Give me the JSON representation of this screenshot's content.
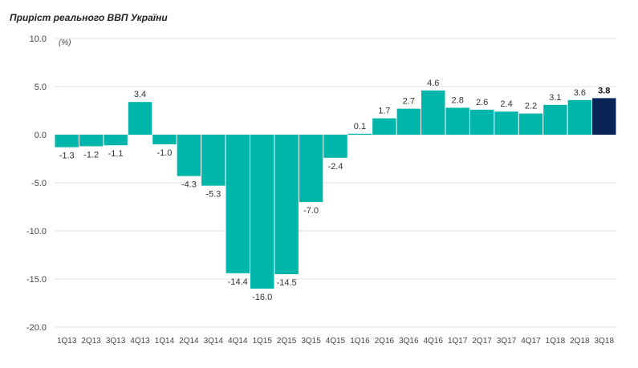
{
  "chart_data": {
    "type": "bar",
    "title": "Приріст реального ВВП України",
    "ylabel": "(%)",
    "xlabel": "",
    "ylim": [
      -20,
      10
    ],
    "yticks": [
      "10.0",
      "5.0",
      "0.0",
      "-5.0",
      "-10.0",
      "-15.0",
      "-20.0"
    ],
    "ytick_values": [
      10,
      5,
      0,
      -5,
      -10,
      -15,
      -20
    ],
    "grid": true,
    "categories": [
      "1Q13",
      "2Q13",
      "3Q13",
      "4Q13",
      "1Q14",
      "2Q14",
      "3Q14",
      "4Q14",
      "1Q15",
      "2Q15",
      "3Q15",
      "4Q15",
      "1Q16",
      "2Q16",
      "3Q16",
      "4Q16",
      "1Q17",
      "2Q17",
      "3Q17",
      "4Q17",
      "1Q18",
      "2Q18",
      "3Q18"
    ],
    "values": [
      -1.3,
      -1.2,
      -1.1,
      3.4,
      -1.0,
      -4.3,
      -5.3,
      -14.4,
      -16.0,
      -14.5,
      -7.0,
      -2.4,
      0.1,
      1.7,
      2.7,
      4.6,
      2.8,
      2.6,
      2.4,
      2.2,
      3.1,
      3.6,
      3.8
    ],
    "labels": [
      "-1.3",
      "-1.2",
      "-1.1",
      "3.4",
      "-1.0",
      "-4.3",
      "-5.3",
      "-14.4",
      "-16.0",
      "-14.5",
      "-7.0",
      "-2.4",
      "0.1",
      "1.7",
      "2.7",
      "4.6",
      "2.8",
      "2.6",
      "2.4",
      "2.2",
      "3.1",
      "3.6",
      "3.8"
    ],
    "highlight_index": 22,
    "colors": {
      "bar": "#00b5aa",
      "highlight": "#0a2458",
      "grid": "#e2e2e2",
      "zero_line": "#cccccc"
    }
  }
}
